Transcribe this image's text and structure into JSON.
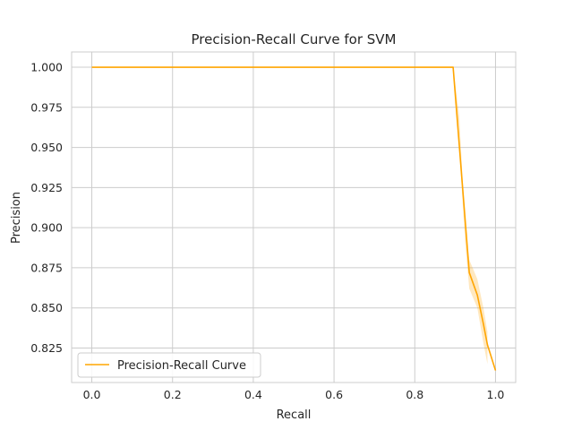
{
  "chart_data": {
    "type": "line",
    "title": "Precision-Recall Curve for SVM",
    "xlabel": "Recall",
    "ylabel": "Precision",
    "xlim": [
      -0.05,
      1.05
    ],
    "ylim": [
      0.8035,
      1.0095
    ],
    "xticks": [
      0.0,
      0.2,
      0.4,
      0.6,
      0.8,
      1.0
    ],
    "xtick_labels": [
      "0.0",
      "0.2",
      "0.4",
      "0.6",
      "0.8",
      "1.0"
    ],
    "yticks": [
      0.825,
      0.85,
      0.875,
      0.9,
      0.925,
      0.95,
      0.975,
      1.0
    ],
    "ytick_labels": [
      "0.825",
      "0.850",
      "0.875",
      "0.900",
      "0.925",
      "0.950",
      "0.975",
      "1.000"
    ],
    "grid": true,
    "legend_position": "bottom-left",
    "series": [
      {
        "name": "Precision-Recall Curve",
        "color": "#ffa500",
        "x": [
          0.0,
          0.895,
          0.935,
          0.955,
          0.97,
          0.98,
          1.0
        ],
        "y": [
          1.0,
          1.0,
          0.872,
          0.858,
          0.84,
          0.827,
          0.811
        ],
        "band_x": [
          0.895,
          0.91,
          0.925,
          0.935,
          0.955,
          0.97,
          0.98
        ],
        "band_upper": [
          1.0,
          0.97,
          0.9,
          0.88,
          0.868,
          0.85,
          0.835
        ],
        "band_lower": [
          1.0,
          0.95,
          0.89,
          0.862,
          0.85,
          0.828,
          0.815
        ]
      }
    ]
  }
}
